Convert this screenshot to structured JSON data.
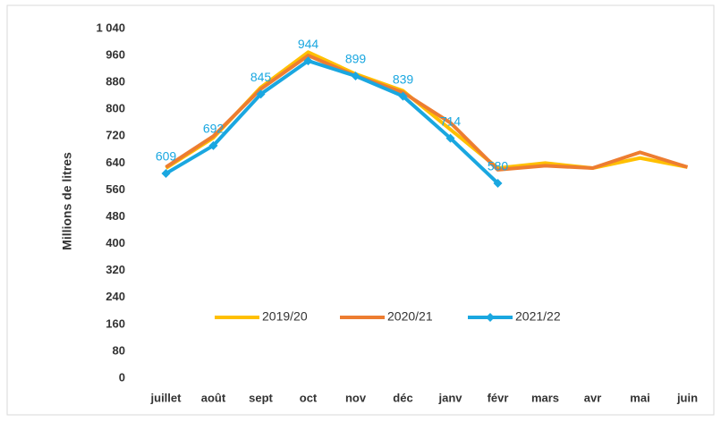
{
  "chart_data": {
    "type": "line",
    "y_label": "Millions de litres",
    "categories": [
      "juillet",
      "août",
      "sept",
      "oct",
      "nov",
      "déc",
      "janv",
      "févr",
      "mars",
      "avr",
      "mai",
      "juin"
    ],
    "series": [
      {
        "name": "2019/20",
        "color": "#ffc000",
        "values": [
          625,
          715,
          865,
          970,
          905,
          855,
          740,
          625,
          640,
          625,
          655,
          628
        ]
      },
      {
        "name": "2020/21",
        "color": "#ed7d31",
        "values": [
          628,
          720,
          860,
          960,
          900,
          850,
          760,
          620,
          632,
          625,
          672,
          628
        ]
      },
      {
        "name": "2021/22",
        "color": "#1aa7e0",
        "values": [
          609,
          692,
          845,
          944,
          899,
          839,
          714,
          580,
          null,
          null,
          null,
          null
        ]
      }
    ],
    "ylim": [
      0,
      1040
    ],
    "yticks": [
      0,
      80,
      160,
      240,
      320,
      400,
      480,
      560,
      640,
      720,
      800,
      880,
      960,
      {
        "value": 1040,
        "label": "1 040"
      }
    ],
    "grid": false
  }
}
